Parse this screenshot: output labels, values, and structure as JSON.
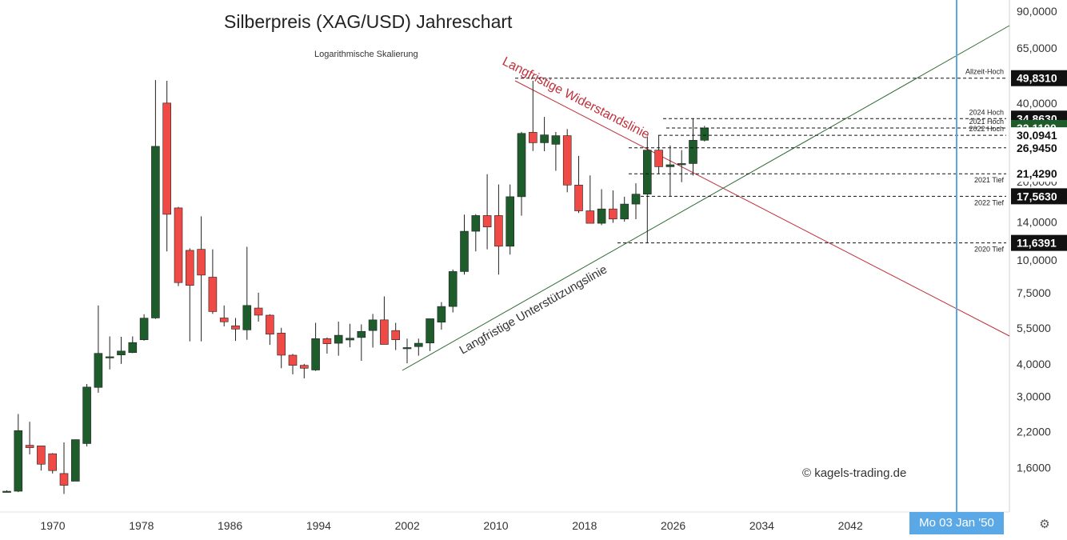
{
  "title": "Silberpreis (XAG/USD) Jahreschart",
  "subtitle": "Logarithmische Skalierung",
  "copyright": "© kagels-trading.de",
  "crosshair_date": "Mo 03 Jan '50",
  "colors": {
    "up": "#1e5c2c",
    "down": "#ef4a45",
    "resistance": "#c0303a",
    "support": "#2e6b35",
    "crosshair": "#5aa9e6"
  },
  "resistance_label": "Langfristige Widerstandslinie",
  "support_label": "Langfristige Unterstützungslinie",
  "chart_data": {
    "type": "candlestick",
    "y_scale": "log",
    "x_ticks": [
      "1970",
      "1978",
      "1986",
      "1994",
      "2002",
      "2010",
      "2018",
      "2026",
      "2034",
      "2042"
    ],
    "y_ticks": [
      "1,6000",
      "2,2000",
      "3,0000",
      "4,0000",
      "5,5000",
      "7,5000",
      "10,0000",
      "14,0000",
      "20,0000",
      "28,0000",
      "40,0000",
      "65,0000",
      "90,0000"
    ],
    "candles": [
      {
        "year": 1967,
        "open": 1.3,
        "high": 1.31,
        "low": 1.29,
        "close": 1.3
      },
      {
        "year": 1968,
        "open": 1.3,
        "high": 2.57,
        "low": 1.29,
        "close": 2.22
      },
      {
        "year": 1969,
        "open": 1.95,
        "high": 2.4,
        "low": 1.8,
        "close": 1.91
      },
      {
        "year": 1970,
        "open": 1.94,
        "high": 1.94,
        "low": 1.56,
        "close": 1.65
      },
      {
        "year": 1971,
        "open": 1.81,
        "high": 1.82,
        "low": 1.52,
        "close": 1.56
      },
      {
        "year": 1972,
        "open": 1.52,
        "high": 2.0,
        "low": 1.27,
        "close": 1.37
      },
      {
        "year": 1973,
        "open": 1.42,
        "high": 1.95,
        "low": 1.42,
        "close": 2.05
      },
      {
        "year": 1974,
        "open": 1.98,
        "high": 3.35,
        "low": 1.93,
        "close": 3.26
      },
      {
        "year": 1975,
        "open": 3.25,
        "high": 6.7,
        "low": 3.1,
        "close": 4.39
      },
      {
        "year": 1976,
        "open": 4.23,
        "high": 5.1,
        "low": 3.81,
        "close": 4.26
      },
      {
        "year": 1977,
        "open": 4.33,
        "high": 5.08,
        "low": 4.0,
        "close": 4.48
      },
      {
        "year": 1978,
        "open": 4.42,
        "high": 5.1,
        "low": 4.4,
        "close": 4.83
      },
      {
        "year": 1979,
        "open": 4.95,
        "high": 6.2,
        "low": 4.91,
        "close": 5.99
      },
      {
        "year": 1980,
        "open": 6.0,
        "high": 49.0,
        "low": 5.95,
        "close": 27.3
      },
      {
        "year": 1981,
        "open": 40.0,
        "high": 48.7,
        "low": 10.8,
        "close": 14.98
      },
      {
        "year": 1982,
        "open": 15.85,
        "high": 16.0,
        "low": 7.95,
        "close": 8.2
      },
      {
        "year": 1983,
        "open": 10.9,
        "high": 11.1,
        "low": 4.88,
        "close": 8.0
      },
      {
        "year": 1984,
        "open": 11.0,
        "high": 14.72,
        "low": 4.88,
        "close": 8.76
      },
      {
        "year": 1985,
        "open": 8.6,
        "high": 11.0,
        "low": 6.22,
        "close": 6.35
      },
      {
        "year": 1986,
        "open": 6.0,
        "high": 6.7,
        "low": 5.57,
        "close": 5.8
      },
      {
        "year": 1987,
        "open": 5.6,
        "high": 6.0,
        "low": 4.9,
        "close": 5.44
      },
      {
        "year": 1988,
        "open": 5.4,
        "high": 11.25,
        "low": 4.95,
        "close": 6.7
      },
      {
        "year": 1989,
        "open": 6.55,
        "high": 7.5,
        "low": 5.81,
        "close": 6.15
      },
      {
        "year": 1990,
        "open": 6.15,
        "high": 6.2,
        "low": 4.73,
        "close": 5.2
      },
      {
        "year": 1991,
        "open": 5.25,
        "high": 5.5,
        "low": 3.85,
        "close": 4.32
      },
      {
        "year": 1992,
        "open": 4.32,
        "high": 4.37,
        "low": 3.65,
        "close": 3.95
      },
      {
        "year": 1993,
        "open": 3.95,
        "high": 4.0,
        "low": 3.52,
        "close": 3.85
      },
      {
        "year": 1994,
        "open": 3.79,
        "high": 5.75,
        "low": 3.76,
        "close": 5.0
      },
      {
        "year": 1995,
        "open": 5.0,
        "high": 5.05,
        "low": 4.38,
        "close": 4.78
      },
      {
        "year": 1996,
        "open": 4.8,
        "high": 5.81,
        "low": 4.3,
        "close": 5.15
      },
      {
        "year": 1997,
        "open": 4.94,
        "high": 5.7,
        "low": 4.63,
        "close": 5.02
      },
      {
        "year": 1998,
        "open": 5.05,
        "high": 5.67,
        "low": 4.11,
        "close": 5.33
      },
      {
        "year": 1999,
        "open": 5.37,
        "high": 6.22,
        "low": 4.62,
        "close": 5.9
      },
      {
        "year": 2000,
        "open": 5.9,
        "high": 7.26,
        "low": 4.94,
        "close": 4.75
      },
      {
        "year": 2001,
        "open": 5.37,
        "high": 5.75,
        "low": 4.52,
        "close": 4.95
      },
      {
        "year": 2002,
        "open": 4.62,
        "high": 5.0,
        "low": 4.02,
        "close": 4.62
      },
      {
        "year": 2003,
        "open": 4.66,
        "high": 5.0,
        "low": 4.3,
        "close": 4.8
      },
      {
        "year": 2004,
        "open": 4.81,
        "high": 5.58,
        "low": 4.48,
        "close": 5.96
      },
      {
        "year": 2005,
        "open": 5.78,
        "high": 6.9,
        "low": 5.41,
        "close": 6.64
      },
      {
        "year": 2006,
        "open": 6.64,
        "high": 9.2,
        "low": 6.3,
        "close": 9.04
      },
      {
        "year": 2007,
        "open": 9.04,
        "high": 14.94,
        "low": 8.8,
        "close": 12.9
      },
      {
        "year": 2008,
        "open": 12.9,
        "high": 15.0,
        "low": 10.8,
        "close": 14.82
      },
      {
        "year": 2009,
        "open": 14.82,
        "high": 21.35,
        "low": 11.0,
        "close": 13.4
      },
      {
        "year": 2010,
        "open": 14.82,
        "high": 19.5,
        "low": 8.8,
        "close": 11.3
      },
      {
        "year": 2011,
        "open": 11.3,
        "high": 19.5,
        "low": 10.5,
        "close": 17.5
      },
      {
        "year": 2012,
        "open": 17.5,
        "high": 31.0,
        "low": 14.8,
        "close": 30.6
      },
      {
        "year": 2013,
        "open": 30.9,
        "high": 48.7,
        "low": 26.2,
        "close": 28.18
      },
      {
        "year": 2014,
        "open": 28.18,
        "high": 35.4,
        "low": 26.15,
        "close": 30.2
      },
      {
        "year": 2015,
        "open": 27.8,
        "high": 31.0,
        "low": 22.0,
        "close": 30.0
      },
      {
        "year": 2016,
        "open": 30.0,
        "high": 31.8,
        "low": 18.2,
        "close": 19.4
      },
      {
        "year": 2017,
        "open": 19.4,
        "high": 25.1,
        "low": 15.15,
        "close": 15.45
      },
      {
        "year": 2018,
        "open": 15.45,
        "high": 21.12,
        "low": 13.9,
        "close": 13.84
      },
      {
        "year": 2019,
        "open": 13.84,
        "high": 18.7,
        "low": 13.62,
        "close": 15.71
      },
      {
        "year": 2020,
        "open": 15.71,
        "high": 18.5,
        "low": 13.9,
        "close": 14.37
      },
      {
        "year": 2021,
        "open": 14.37,
        "high": 17.5,
        "low": 14.05,
        "close": 16.4
      },
      {
        "year": 2022,
        "open": 16.4,
        "high": 19.7,
        "low": 14.35,
        "close": 17.9
      },
      {
        "year": 2023,
        "open": 17.9,
        "high": 29.8,
        "low": 11.64,
        "close": 26.4
      },
      {
        "year": 2024,
        "open": 26.4,
        "high": 30.09,
        "low": 21.43,
        "close": 22.8
      },
      {
        "year": 2025,
        "open": 22.8,
        "high": 27.5,
        "low": 17.56,
        "close": 23.2
      },
      {
        "year": 2026,
        "open": 23.2,
        "high": 26.4,
        "low": 19.9,
        "close": 23.45
      },
      {
        "year": 2027,
        "open": 23.45,
        "high": 34.86,
        "low": 21.1,
        "close": 28.8
      },
      {
        "year": 2028,
        "open": 28.8,
        "high": 32.7,
        "low": 28.5,
        "close": 32.11
      }
    ],
    "levels": [
      {
        "value": 49.831,
        "price": "49,8310",
        "label": "Allzeit-Hoch",
        "style": "dark"
      },
      {
        "value": 34.863,
        "price": "34,8630",
        "label": "2024 Hoch",
        "style": "dark"
      },
      {
        "value": 32.11,
        "price": "32,1100",
        "label": "2021 Hoch",
        "style": "green"
      },
      {
        "value": 30.0941,
        "price": "30,0941",
        "label": "2022 Hoch",
        "style": "plain"
      },
      {
        "value": 26.945,
        "price": "26,9450",
        "label": "",
        "style": "plain"
      },
      {
        "value": 21.429,
        "price": "21,4290",
        "label": "2021 Tief",
        "style": "plain"
      },
      {
        "value": 17.563,
        "price": "17,5630",
        "label": "2022 Tief",
        "style": "dark"
      },
      {
        "value": 11.6391,
        "price": "11,6391",
        "label": "2020 Tief",
        "style": "dark"
      }
    ]
  }
}
